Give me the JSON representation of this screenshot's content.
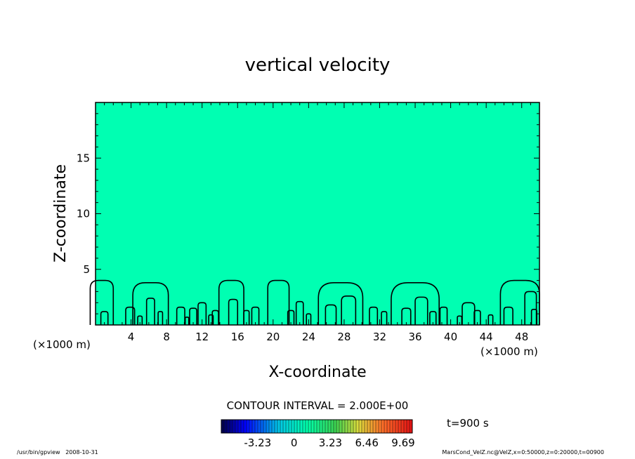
{
  "chart_data": {
    "type": "contour",
    "title": "vertical velocity",
    "xlabel": "X-coordinate",
    "ylabel": "Z-coordinate",
    "x_unit_left": "(×1000 m)",
    "x_unit_right": "(×1000 m)",
    "xlim": [
      0,
      50
    ],
    "ylim": [
      0,
      20
    ],
    "x_ticks": [
      4,
      8,
      12,
      16,
      20,
      24,
      28,
      32,
      36,
      40,
      44,
      48
    ],
    "y_ticks": [
      5,
      10,
      15
    ],
    "fill_color": "#00ffb2",
    "contour_interval_label": "CONTOUR INTERVAL = 2.000E+00",
    "time_label": "t=900 s",
    "colorbar": {
      "tick_labels": [
        "-3.23",
        "0",
        "3.23",
        "6.46",
        "9.69"
      ],
      "tick_values": [
        -3.23,
        0,
        3.23,
        6.46,
        9.69
      ],
      "range": [
        -6.46,
        10.5
      ]
    },
    "plumes": [
      {
        "x": 0.7,
        "w": 2.6,
        "h": 4.0
      },
      {
        "x": 1.0,
        "w": 0.8,
        "h": 1.2
      },
      {
        "x": 3.9,
        "w": 1.0,
        "h": 1.6
      },
      {
        "x": 5.0,
        "w": 0.5,
        "h": 0.8
      },
      {
        "x": 6.2,
        "w": 4.0,
        "h": 3.8
      },
      {
        "x": 6.2,
        "w": 0.9,
        "h": 2.4
      },
      {
        "x": 7.3,
        "w": 0.5,
        "h": 1.2
      },
      {
        "x": 9.6,
        "w": 0.9,
        "h": 1.6
      },
      {
        "x": 10.3,
        "w": 0.4,
        "h": 0.7
      },
      {
        "x": 11.0,
        "w": 0.8,
        "h": 1.5
      },
      {
        "x": 12.0,
        "w": 0.9,
        "h": 2.0
      },
      {
        "x": 13.0,
        "w": 0.5,
        "h": 0.9
      },
      {
        "x": 13.5,
        "w": 0.7,
        "h": 1.3
      },
      {
        "x": 15.3,
        "w": 2.8,
        "h": 4.0
      },
      {
        "x": 15.5,
        "w": 1.0,
        "h": 2.3
      },
      {
        "x": 17.0,
        "w": 0.6,
        "h": 1.3
      },
      {
        "x": 18.0,
        "w": 0.8,
        "h": 1.6
      },
      {
        "x": 20.6,
        "w": 2.4,
        "h": 4.0
      },
      {
        "x": 22.0,
        "w": 0.7,
        "h": 1.3
      },
      {
        "x": 23.0,
        "w": 0.8,
        "h": 2.1
      },
      {
        "x": 24.0,
        "w": 0.5,
        "h": 1.0
      },
      {
        "x": 27.6,
        "w": 5.0,
        "h": 3.8
      },
      {
        "x": 26.5,
        "w": 1.2,
        "h": 1.8
      },
      {
        "x": 28.5,
        "w": 1.6,
        "h": 2.6
      },
      {
        "x": 31.3,
        "w": 0.9,
        "h": 1.6
      },
      {
        "x": 32.5,
        "w": 0.6,
        "h": 1.2
      },
      {
        "x": 36.0,
        "w": 5.4,
        "h": 3.8
      },
      {
        "x": 35.0,
        "w": 1.0,
        "h": 1.5
      },
      {
        "x": 36.7,
        "w": 1.4,
        "h": 2.5
      },
      {
        "x": 38.0,
        "w": 0.7,
        "h": 1.2
      },
      {
        "x": 39.2,
        "w": 0.8,
        "h": 1.6
      },
      {
        "x": 41.0,
        "w": 0.5,
        "h": 0.8
      },
      {
        "x": 42.0,
        "w": 1.4,
        "h": 2.0
      },
      {
        "x": 43.0,
        "w": 0.7,
        "h": 1.3
      },
      {
        "x": 44.5,
        "w": 0.5,
        "h": 0.9
      },
      {
        "x": 47.8,
        "w": 4.4,
        "h": 4.0
      },
      {
        "x": 46.5,
        "w": 1.0,
        "h": 1.6
      },
      {
        "x": 49.0,
        "w": 1.3,
        "h": 3.0
      },
      {
        "x": 49.4,
        "w": 0.6,
        "h": 1.4
      }
    ]
  },
  "footer": {
    "left_path": "/usr/bin/gpview",
    "left_date": "2008-10-31",
    "right": "MarsCond_VelZ.nc@VelZ,x=0:50000,z=0:20000,t=00900"
  }
}
